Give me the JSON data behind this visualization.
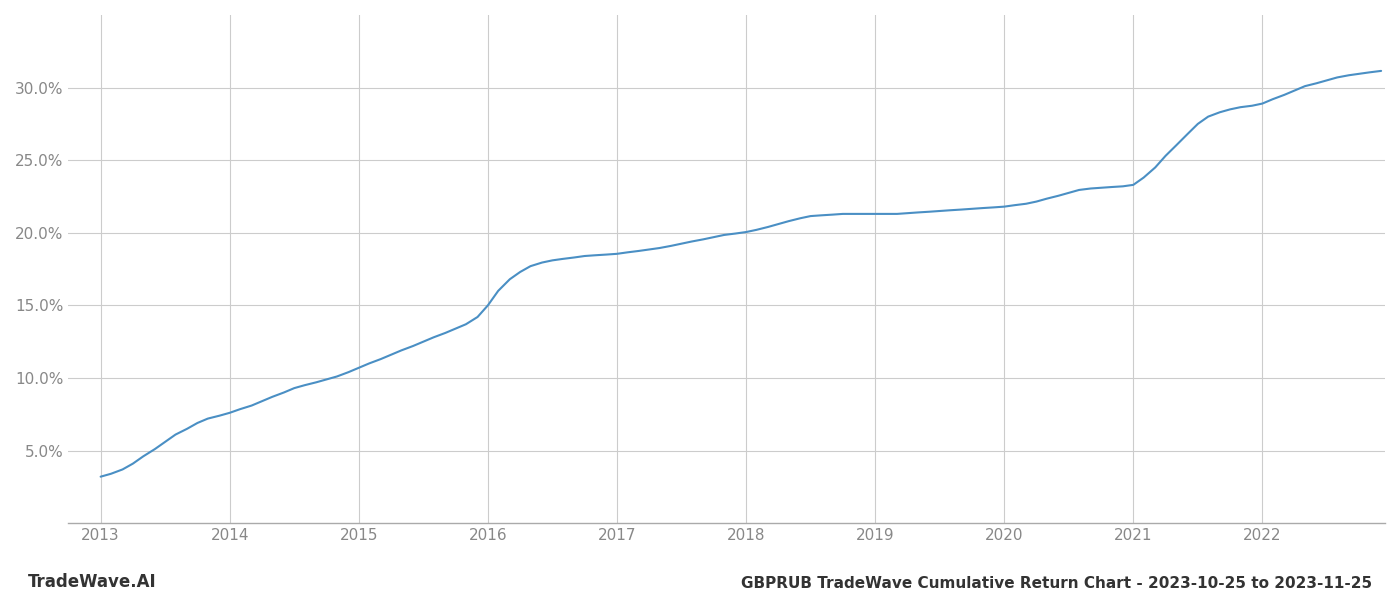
{
  "title": "GBPRUB TradeWave Cumulative Return Chart - 2023-10-25 to 2023-11-25",
  "watermark": "TradeWave.AI",
  "line_color": "#4a8fc4",
  "background_color": "#ffffff",
  "grid_color": "#cccccc",
  "x_data": [
    2013.0,
    2013.08,
    2013.17,
    2013.25,
    2013.33,
    2013.42,
    2013.5,
    2013.58,
    2013.67,
    2013.75,
    2013.83,
    2013.92,
    2014.0,
    2014.08,
    2014.17,
    2014.25,
    2014.33,
    2014.42,
    2014.5,
    2014.58,
    2014.67,
    2014.75,
    2014.83,
    2014.92,
    2015.0,
    2015.08,
    2015.17,
    2015.25,
    2015.33,
    2015.42,
    2015.5,
    2015.58,
    2015.67,
    2015.75,
    2015.83,
    2015.92,
    2016.0,
    2016.08,
    2016.17,
    2016.25,
    2016.33,
    2016.42,
    2016.5,
    2016.58,
    2016.67,
    2016.75,
    2016.83,
    2016.92,
    2017.0,
    2017.08,
    2017.17,
    2017.25,
    2017.33,
    2017.42,
    2017.5,
    2017.58,
    2017.67,
    2017.75,
    2017.83,
    2017.92,
    2018.0,
    2018.08,
    2018.17,
    2018.25,
    2018.33,
    2018.42,
    2018.5,
    2018.58,
    2018.67,
    2018.75,
    2018.83,
    2018.92,
    2019.0,
    2019.08,
    2019.17,
    2019.25,
    2019.33,
    2019.42,
    2019.5,
    2019.58,
    2019.67,
    2019.75,
    2019.83,
    2019.92,
    2020.0,
    2020.08,
    2020.17,
    2020.25,
    2020.33,
    2020.42,
    2020.5,
    2020.58,
    2020.67,
    2020.75,
    2020.83,
    2020.92,
    2021.0,
    2021.08,
    2021.17,
    2021.25,
    2021.33,
    2021.42,
    2021.5,
    2021.58,
    2021.67,
    2021.75,
    2021.83,
    2021.92,
    2022.0,
    2022.08,
    2022.17,
    2022.25,
    2022.33,
    2022.42,
    2022.5,
    2022.58,
    2022.67,
    2022.75,
    2022.83,
    2022.92
  ],
  "y_data": [
    3.2,
    3.4,
    3.7,
    4.1,
    4.6,
    5.1,
    5.6,
    6.1,
    6.5,
    6.9,
    7.2,
    7.4,
    7.6,
    7.85,
    8.1,
    8.4,
    8.7,
    9.0,
    9.3,
    9.5,
    9.7,
    9.9,
    10.1,
    10.4,
    10.7,
    11.0,
    11.3,
    11.6,
    11.9,
    12.2,
    12.5,
    12.8,
    13.1,
    13.4,
    13.7,
    14.2,
    15.0,
    16.0,
    16.8,
    17.3,
    17.7,
    17.95,
    18.1,
    18.2,
    18.3,
    18.4,
    18.45,
    18.5,
    18.55,
    18.65,
    18.75,
    18.85,
    18.95,
    19.1,
    19.25,
    19.4,
    19.55,
    19.7,
    19.85,
    19.95,
    20.05,
    20.2,
    20.4,
    20.6,
    20.8,
    21.0,
    21.15,
    21.2,
    21.25,
    21.3,
    21.3,
    21.3,
    21.3,
    21.3,
    21.3,
    21.35,
    21.4,
    21.45,
    21.5,
    21.55,
    21.6,
    21.65,
    21.7,
    21.75,
    21.8,
    21.9,
    22.0,
    22.15,
    22.35,
    22.55,
    22.75,
    22.95,
    23.05,
    23.1,
    23.15,
    23.2,
    23.3,
    23.8,
    24.5,
    25.3,
    26.0,
    26.8,
    27.5,
    28.0,
    28.3,
    28.5,
    28.65,
    28.75,
    28.9,
    29.2,
    29.5,
    29.8,
    30.1,
    30.3,
    30.5,
    30.7,
    30.85,
    30.95,
    31.05,
    31.15
  ],
  "ylim": [
    0,
    35
  ],
  "xlim": [
    2012.75,
    2022.95
  ],
  "yticks": [
    5.0,
    10.0,
    15.0,
    20.0,
    25.0,
    30.0
  ],
  "xticks": [
    2013,
    2014,
    2015,
    2016,
    2017,
    2018,
    2019,
    2020,
    2021,
    2022
  ],
  "line_width": 1.5,
  "title_fontsize": 11,
  "tick_fontsize": 11,
  "watermark_fontsize": 12
}
